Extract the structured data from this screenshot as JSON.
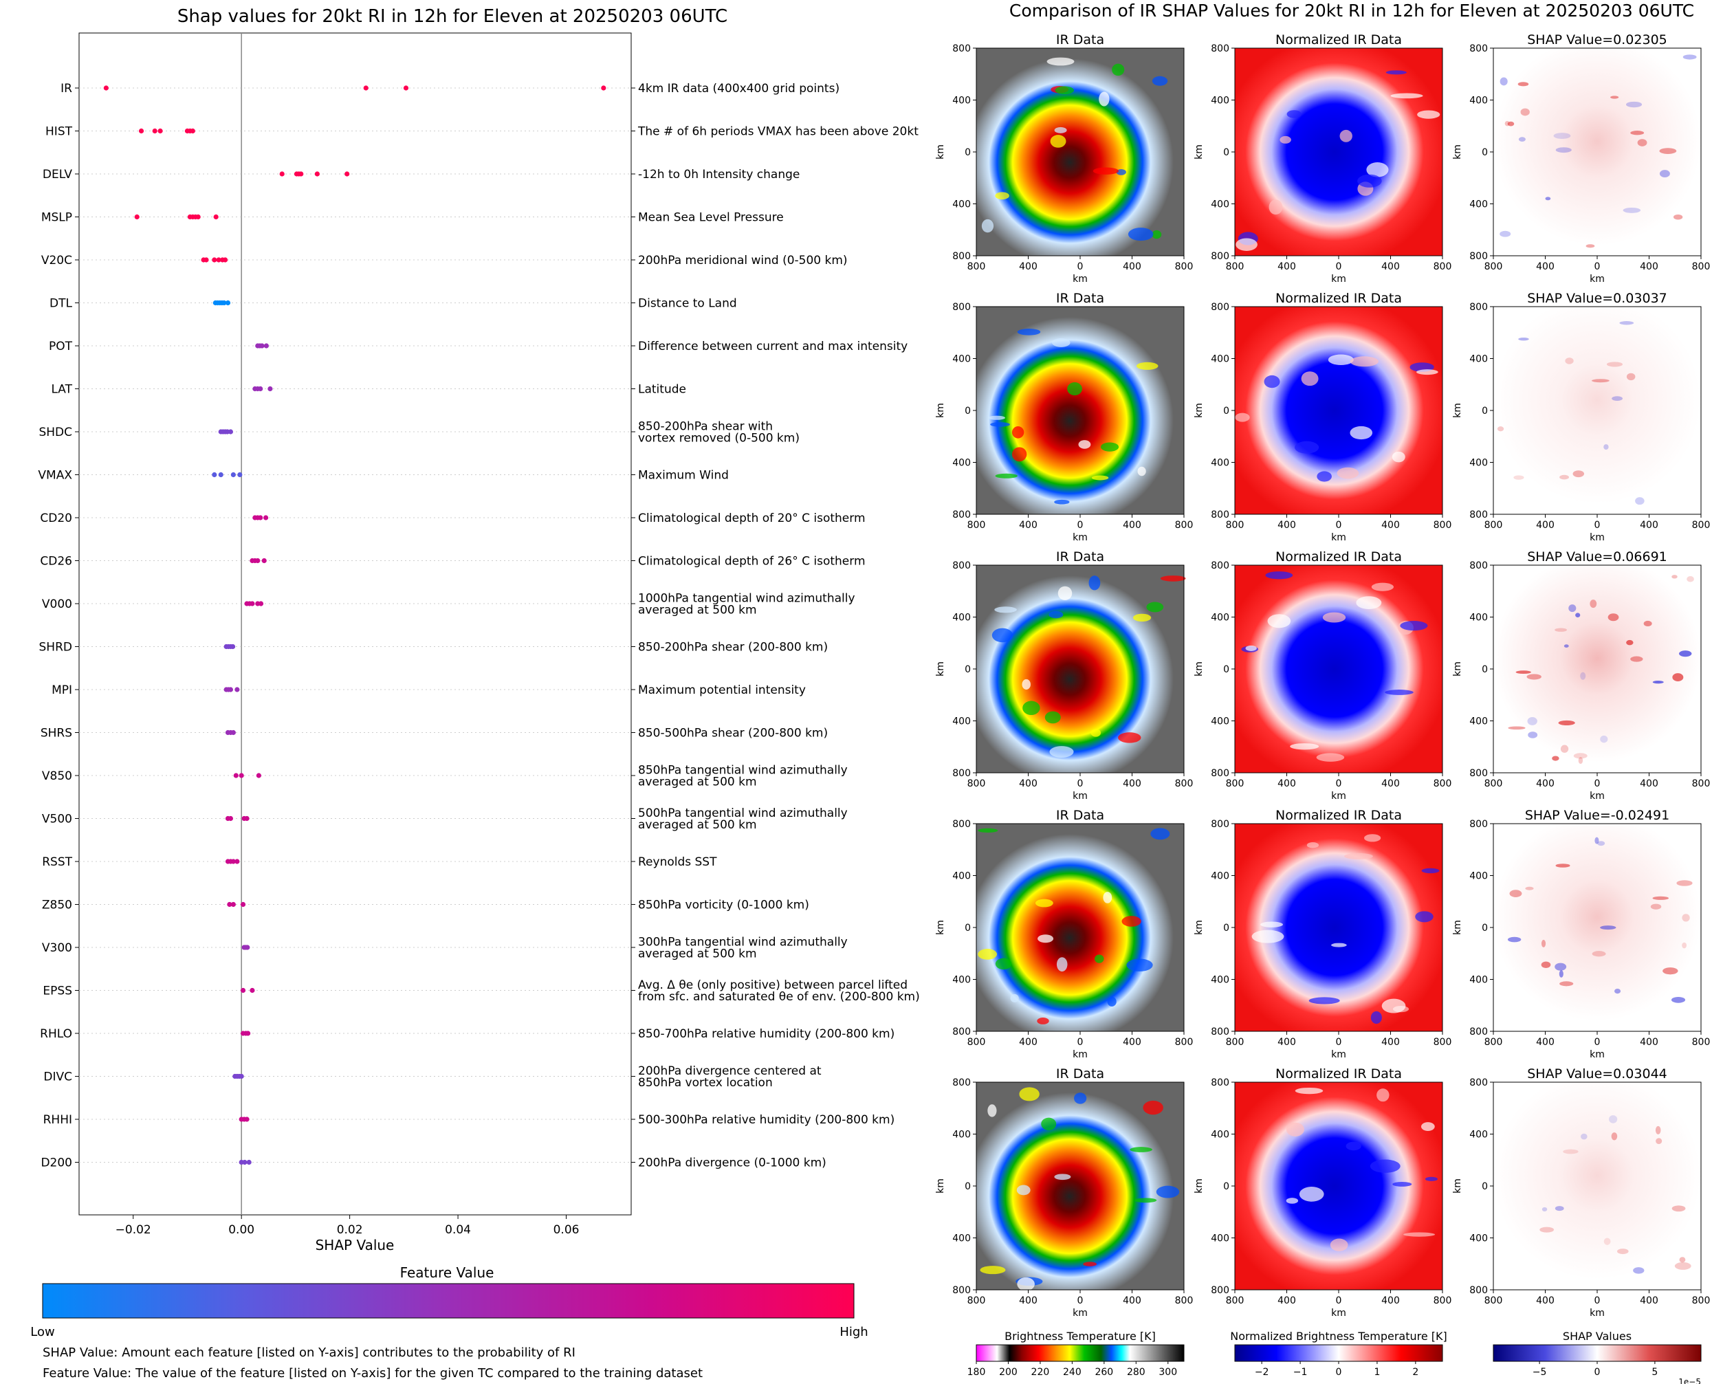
{
  "left": {
    "title": "Shap values for 20kt RI in 12h for Eleven at 20250203 06UTC",
    "xlabel": "SHAP Value",
    "colorbar": {
      "label": "Feature Value",
      "low": "Low",
      "high": "High",
      "colors": [
        "#008bfb",
        "#5a5be0",
        "#9a2fb8",
        "#cc0a8e",
        "#ff0052"
      ]
    },
    "notes": [
      "SHAP Value: Amount each feature [listed on Y-axis] contributes to the probability of RI",
      "Feature Value: The value of the feature [listed on Y-axis] for the given TC compared to the training dataset"
    ]
  },
  "chart_data": [
    {
      "type": "scatter",
      "title": "Shap values for 20kt RI in 12h for Eleven at 20250203 06UTC",
      "xlabel": "SHAP Value",
      "xlim": [
        -0.03,
        0.072
      ],
      "xticks": [
        -0.02,
        0.0,
        0.02,
        0.04,
        0.06
      ],
      "xtick_labels": [
        "−0.02",
        "0.00",
        "0.02",
        "0.04",
        "0.06"
      ],
      "grid": "horizontal dotted",
      "features": [
        {
          "name": "IR",
          "description": "4km IR data (400x400 grid points)",
          "shap": [
            -0.025,
            0.023,
            0.0304,
            0.0669
          ],
          "color": "#ff0052"
        },
        {
          "name": "HIST",
          "description": "The # of 6h periods VMAX has been above 20kt",
          "shap": [
            -0.0185,
            -0.016,
            -0.015,
            -0.01,
            -0.0095,
            -0.009
          ],
          "color": "#ff0052"
        },
        {
          "name": "DELV",
          "description": "-12h to 0h Intensity change",
          "shap": [
            0.0075,
            0.0102,
            0.0106,
            0.011,
            0.014,
            0.0195
          ],
          "color": "#ff0052"
        },
        {
          "name": "MSLP",
          "description": "Mean Sea Level Pressure",
          "shap": [
            -0.0193,
            -0.0095,
            -0.009,
            -0.0085,
            -0.008,
            -0.0047
          ],
          "color": "#ff0052"
        },
        {
          "name": "V20C",
          "description": "200hPa meridional wind (0-500 km)",
          "shap": [
            -0.007,
            -0.0065,
            -0.005,
            -0.0042,
            -0.0035,
            -0.003
          ],
          "color": "#ff0052"
        },
        {
          "name": "DTL",
          "description": "Distance to Land",
          "shap": [
            -0.0048,
            -0.0044,
            -0.004,
            -0.0036,
            -0.0032,
            -0.0025
          ],
          "color": "#008bfb"
        },
        {
          "name": "POT",
          "description": "Difference between current and max intensity",
          "shap": [
            0.003,
            0.0034,
            0.0038,
            0.0046
          ],
          "color": "#9a2fb8"
        },
        {
          "name": "LAT",
          "description": "Latitude",
          "shap": [
            0.0025,
            0.003,
            0.0035,
            0.0053
          ],
          "color": "#9a2fb8"
        },
        {
          "name": "SHDC",
          "description": "850-200hPa shear with\nvortex removed (0-500 km)",
          "shap": [
            -0.0038,
            -0.0034,
            -0.003,
            -0.0026,
            -0.002
          ],
          "color": "#7a45cf"
        },
        {
          "name": "VMAX",
          "description": "Maximum Wind",
          "shap": [
            -0.005,
            -0.0038,
            -0.0015,
            -0.0003
          ],
          "color": "#5a5be0"
        },
        {
          "name": "CD20",
          "description": "Climatological depth of 20° C isotherm",
          "shap": [
            0.0025,
            0.003,
            0.0035,
            0.0045
          ],
          "color": "#cc0a8e"
        },
        {
          "name": "CD26",
          "description": "Climatological depth of 26° C isotherm",
          "shap": [
            0.002,
            0.0025,
            0.003,
            0.0042
          ],
          "color": "#cc0a8e"
        },
        {
          "name": "V000",
          "description": "1000hPa tangential wind azimuthally\naveraged at 500 km",
          "shap": [
            0.001,
            0.0015,
            0.002,
            0.003,
            0.0036
          ],
          "color": "#cc0a8e"
        },
        {
          "name": "SHRD",
          "description": "850-200hPa shear (200-800 km)",
          "shap": [
            -0.0028,
            -0.0024,
            -0.002,
            -0.0016
          ],
          "color": "#7a45cf"
        },
        {
          "name": "MPI",
          "description": "Maximum potential intensity",
          "shap": [
            -0.0028,
            -0.0024,
            -0.002,
            -0.0008
          ],
          "color": "#9a2fb8"
        },
        {
          "name": "SHRS",
          "description": "850-500hPa shear (200-800 km)",
          "shap": [
            -0.0025,
            -0.002,
            -0.0015
          ],
          "color": "#9a2fb8"
        },
        {
          "name": "V850",
          "description": "850hPa tangential wind azimuthally\naveraged at 500 km",
          "shap": [
            -0.001,
            0.0,
            0.0032
          ],
          "color": "#cc0a8e"
        },
        {
          "name": "V500",
          "description": "500hPa tangential wind azimuthally\naveraged at 500 km",
          "shap": [
            -0.0025,
            -0.002,
            0.0005,
            0.001
          ],
          "color": "#cc0a8e"
        },
        {
          "name": "RSST",
          "description": "Reynolds SST",
          "shap": [
            -0.0025,
            -0.002,
            -0.0015,
            -0.0008
          ],
          "color": "#cc0a8e"
        },
        {
          "name": "Z850",
          "description": "850hPa vorticity (0-1000 km)",
          "shap": [
            -0.0022,
            -0.0015,
            0.0003
          ],
          "color": "#cc0a8e"
        },
        {
          "name": "V300",
          "description": "300hPa tangential wind azimuthally\naveraged at 500 km",
          "shap": [
            0.0005,
            0.0008,
            0.0011
          ],
          "color": "#9a2fb8"
        },
        {
          "name": "EPSS",
          "description": "Avg. Δ θe (only positive) between parcel lifted\nfrom sfc. and saturated θe of env. (200-800 km)",
          "shap": [
            0.0003,
            0.002
          ],
          "color": "#cc0a8e"
        },
        {
          "name": "RHLO",
          "description": "850-700hPa relative humidity (200-800 km)",
          "shap": [
            0.0003,
            0.0008,
            0.0012
          ],
          "color": "#cc0a8e"
        },
        {
          "name": "DIVC",
          "description": "200hPa divergence centered at\n850hPa vortex location",
          "shap": [
            -0.0012,
            -0.0008,
            -0.0004,
            0.0
          ],
          "color": "#7a45cf"
        },
        {
          "name": "RHHI",
          "description": "500-300hPa relative humidity (200-800 km)",
          "shap": [
            0.0,
            0.0005,
            0.001
          ],
          "color": "#cc0a8e"
        },
        {
          "name": "D200",
          "description": "200hPa divergence (0-1000 km)",
          "shap": [
            0.0,
            0.0006,
            0.0014
          ],
          "color": "#7a45cf"
        }
      ]
    },
    {
      "type": "heatmap",
      "title": "Comparison of IR SHAP Values for 20kt RI in 12h for Eleven at 20250203 06UTC",
      "rows": [
        {
          "shap_value": "SHAP Value=0.02305",
          "intensity": 0.45
        },
        {
          "shap_value": "SHAP Value=0.03037",
          "intensity": 0.2
        },
        {
          "shap_value": "SHAP Value=0.06691",
          "intensity": 0.7
        },
        {
          "shap_value": "SHAP Value=-0.02491",
          "intensity": 0.5
        },
        {
          "shap_value": "SHAP Value=0.03044",
          "intensity": 0.25
        }
      ],
      "panel_titles": [
        "IR Data",
        "Normalized IR Data"
      ],
      "axis_label": "km",
      "axis_ticks": [
        "800",
        "400",
        "0",
        "400",
        "800"
      ],
      "colorbars": [
        {
          "label": "Brightness Temperature [K]",
          "ticks": [
            "180",
            "200",
            "220",
            "240",
            "260",
            "280",
            "300"
          ],
          "range": [
            180,
            310
          ]
        },
        {
          "label": "Normalized Brightness Temperature [K]",
          "ticks": [
            "−2",
            "−1",
            "0",
            "1",
            "2"
          ],
          "range": [
            -2.7,
            2.7
          ]
        },
        {
          "label": "SHAP Values",
          "ticks": [
            "−5",
            "0",
            "5"
          ],
          "range": [
            -9,
            9
          ],
          "offset": "1e−5"
        }
      ]
    }
  ],
  "right": {
    "title": "Comparison of IR SHAP Values for 20kt RI in 12h for Eleven at 20250203 06UTC"
  }
}
